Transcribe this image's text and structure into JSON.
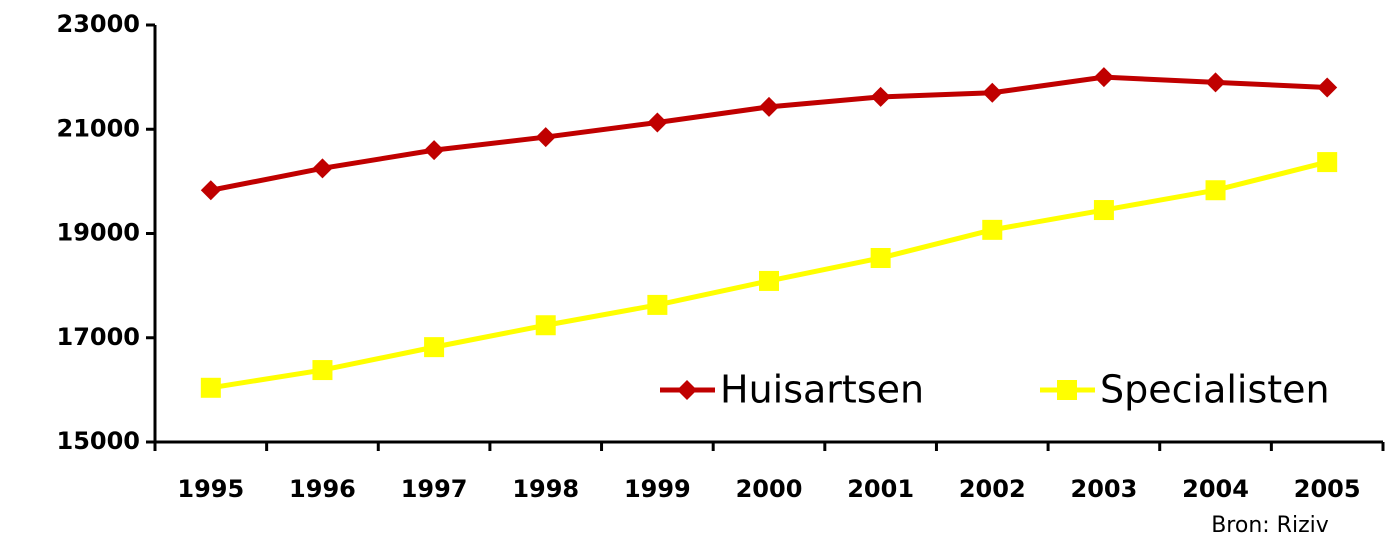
{
  "chart_data": {
    "type": "line",
    "categories": [
      "1995",
      "1996",
      "1997",
      "1998",
      "1999",
      "2000",
      "2001",
      "2002",
      "2003",
      "2004",
      "2005"
    ],
    "series": [
      {
        "name": "Huisartsen",
        "color": "#c00000",
        "marker": "diamond",
        "values": [
          19830,
          20250,
          20600,
          20850,
          21130,
          21430,
          21620,
          21700,
          22000,
          21900,
          21800
        ]
      },
      {
        "name": "Specialisten",
        "color": "#ffff00",
        "marker": "square",
        "values": [
          16040,
          16380,
          16820,
          17240,
          17630,
          18090,
          18530,
          19070,
          19450,
          19830,
          20370
        ]
      }
    ],
    "ylim": [
      15000,
      23000
    ],
    "yticks": [
      15000,
      17000,
      19000,
      21000,
      23000
    ],
    "grid": false,
    "legend": "bottom-right",
    "annotation": "Bron: Riziv"
  }
}
